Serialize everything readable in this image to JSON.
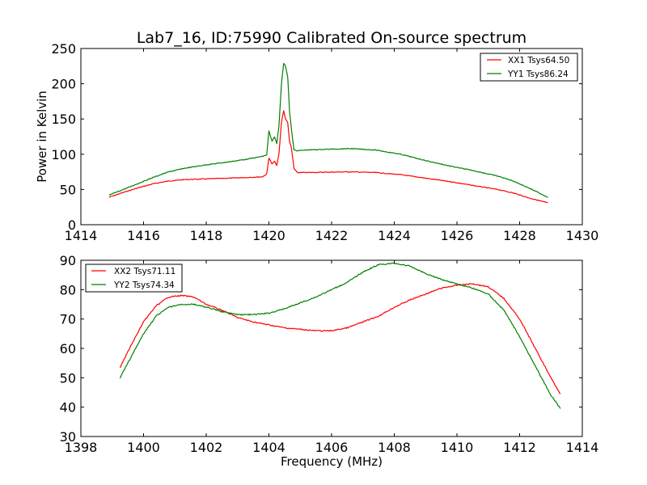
{
  "chart_data": [
    {
      "type": "line",
      "title": "Lab7_16, ID:75990 Calibrated On-source spectrum",
      "xlabel": "",
      "ylabel": "Power in Kelvin",
      "xlim": [
        1414,
        1430
      ],
      "ylim": [
        0,
        250
      ],
      "xticks": [
        "1414",
        "1416",
        "1418",
        "1420",
        "1422",
        "1424",
        "1426",
        "1428",
        "1430"
      ],
      "yticks": [
        "0",
        "50",
        "100",
        "150",
        "200",
        "250"
      ],
      "grid": false,
      "legend_position": "top-right",
      "series": [
        {
          "name": "XX1 Tsys64.50",
          "color": "#ff0000",
          "x": [
            1414.9,
            1415.3,
            1415.8,
            1416.3,
            1416.8,
            1417.3,
            1418.0,
            1418.7,
            1419.3,
            1419.8,
            1419.93,
            1420.0,
            1420.1,
            1420.18,
            1420.25,
            1420.32,
            1420.4,
            1420.47,
            1420.53,
            1420.6,
            1420.66,
            1420.72,
            1420.8,
            1420.9,
            1421.2,
            1421.8,
            1422.6,
            1423.4,
            1424.2,
            1425.0,
            1425.8,
            1426.6,
            1427.3,
            1427.8,
            1428.3,
            1428.9
          ],
          "y": [
            39,
            45,
            52,
            58,
            62,
            64,
            65,
            66,
            67,
            68,
            72,
            95,
            86,
            90,
            84,
            100,
            145,
            162,
            150,
            145,
            118,
            108,
            80,
            74,
            74,
            74.5,
            75,
            74,
            71,
            66,
            61,
            55,
            50,
            45,
            38,
            31
          ]
        },
        {
          "name": "YY1 Tsys86.24",
          "color": "#008000",
          "x": [
            1414.9,
            1415.3,
            1415.8,
            1416.3,
            1416.8,
            1417.3,
            1418.0,
            1418.7,
            1419.3,
            1419.8,
            1419.93,
            1420.0,
            1420.1,
            1420.18,
            1420.25,
            1420.32,
            1420.4,
            1420.47,
            1420.53,
            1420.6,
            1420.66,
            1420.72,
            1420.8,
            1420.9,
            1421.2,
            1421.8,
            1422.6,
            1423.4,
            1424.2,
            1425.0,
            1425.8,
            1426.6,
            1427.3,
            1427.8,
            1428.3,
            1428.9
          ],
          "y": [
            42,
            49,
            58,
            67,
            75,
            80,
            85,
            89,
            93,
            97,
            99,
            133,
            118,
            125,
            115,
            140,
            200,
            229,
            225,
            210,
            160,
            135,
            106,
            105,
            106,
            107,
            108,
            106,
            100,
            91,
            83,
            76,
            69,
            62,
            52,
            39
          ]
        }
      ]
    },
    {
      "type": "line",
      "title": "",
      "xlabel": "Frequency (MHz)",
      "ylabel": "",
      "xlim": [
        1398,
        1414
      ],
      "ylim": [
        30,
        90
      ],
      "xticks": [
        "1398",
        "1400",
        "1402",
        "1404",
        "1406",
        "1408",
        "1410",
        "1412",
        "1414"
      ],
      "yticks": [
        "30",
        "40",
        "50",
        "60",
        "70",
        "80",
        "90"
      ],
      "grid": false,
      "legend_position": "top-left",
      "series": [
        {
          "name": "XX2 Tsys71.11",
          "color": "#ff0000",
          "x": [
            1399.25,
            1399.6,
            1400.0,
            1400.4,
            1400.8,
            1401.2,
            1401.6,
            1402.0,
            1402.5,
            1403.0,
            1403.5,
            1404.0,
            1404.5,
            1405.0,
            1405.5,
            1406.0,
            1406.5,
            1407.0,
            1407.5,
            1408.0,
            1408.5,
            1409.0,
            1409.5,
            1410.0,
            1410.5,
            1411.0,
            1411.5,
            1412.0,
            1412.5,
            1413.0,
            1413.3
          ],
          "y": [
            53.5,
            61,
            69,
            74.5,
            77.5,
            78,
            77.5,
            75,
            73,
            70.5,
            69,
            68,
            67,
            66.5,
            66,
            66,
            67,
            69,
            71,
            74,
            76.5,
            78.5,
            80.5,
            81.5,
            82,
            81,
            77,
            70,
            60,
            50,
            44.5
          ]
        },
        {
          "name": "YY2 Tsys74.34",
          "color": "#008000",
          "x": [
            1399.25,
            1399.6,
            1400.0,
            1400.4,
            1400.8,
            1401.2,
            1401.6,
            1402.0,
            1402.5,
            1403.0,
            1403.5,
            1404.0,
            1404.5,
            1405.0,
            1405.5,
            1406.0,
            1406.5,
            1407.0,
            1407.5,
            1408.0,
            1408.5,
            1409.0,
            1409.5,
            1410.0,
            1410.5,
            1411.0,
            1411.5,
            1412.0,
            1412.5,
            1413.0,
            1413.3
          ],
          "y": [
            50,
            57,
            65,
            71,
            74,
            75,
            75,
            74,
            72.5,
            71.5,
            71.5,
            72,
            73.5,
            75.5,
            77.5,
            80,
            82.5,
            86,
            88.5,
            89,
            88,
            85.5,
            83.5,
            82,
            80.5,
            78.5,
            73,
            64,
            54,
            44,
            39.5
          ]
        }
      ]
    }
  ]
}
